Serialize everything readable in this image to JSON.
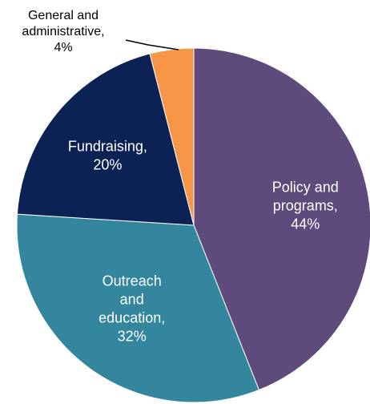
{
  "chart_data": {
    "type": "pie",
    "title": "",
    "slices": [
      {
        "label_lines": [
          "Policy and",
          "programs,",
          "44%"
        ],
        "category": "Policy and programs",
        "value": 44,
        "color": "#5f4b7b",
        "label_color": "light"
      },
      {
        "label_lines": [
          "Outreach",
          "and",
          "education,",
          "32%"
        ],
        "category": "Outreach and education",
        "value": 32,
        "color": "#33869e",
        "label_color": "light"
      },
      {
        "label_lines": [
          "Fundraising,",
          "20%"
        ],
        "category": "Fundraising",
        "value": 20,
        "color": "#0c2254",
        "label_color": "light"
      },
      {
        "label_lines": [
          "General and",
          "administrative,",
          "4%"
        ],
        "category": "General and administrative",
        "value": 4,
        "color": "#f79646",
        "label_color": "dark",
        "label_outside": true
      }
    ],
    "start_angle_deg": 0,
    "direction": "clockwise"
  }
}
